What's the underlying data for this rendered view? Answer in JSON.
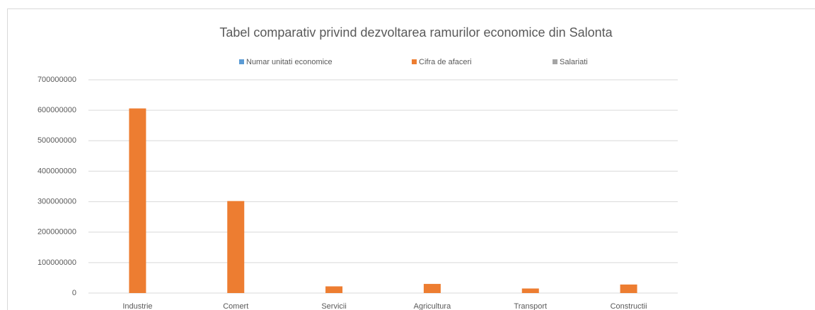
{
  "chart_data": {
    "type": "bar",
    "title": "Tabel comparativ privind dezvoltarea ramurilor economice din Salonta",
    "categories": [
      "Industrie",
      "Comert",
      "Servicii",
      "Agricultura",
      "Transport",
      "Constructii"
    ],
    "series": [
      {
        "name": "Numar unitati economice",
        "color": "#5b9bd5",
        "values": [
          150,
          400,
          300,
          120,
          80,
          100
        ]
      },
      {
        "name": "Cifra de afaceri",
        "color": "#ed7d31",
        "values": [
          606000000,
          302000000,
          22000000,
          30000000,
          15000000,
          28000000
        ]
      },
      {
        "name": "Salariati",
        "color": "#a5a5a5",
        "values": [
          2000,
          1200,
          300,
          250,
          150,
          300
        ]
      }
    ],
    "ylim": [
      0,
      700000000
    ],
    "yticks": [
      0,
      100000000,
      200000000,
      300000000,
      400000000,
      500000000,
      600000000,
      700000000
    ],
    "grid": true,
    "legend": "top"
  }
}
